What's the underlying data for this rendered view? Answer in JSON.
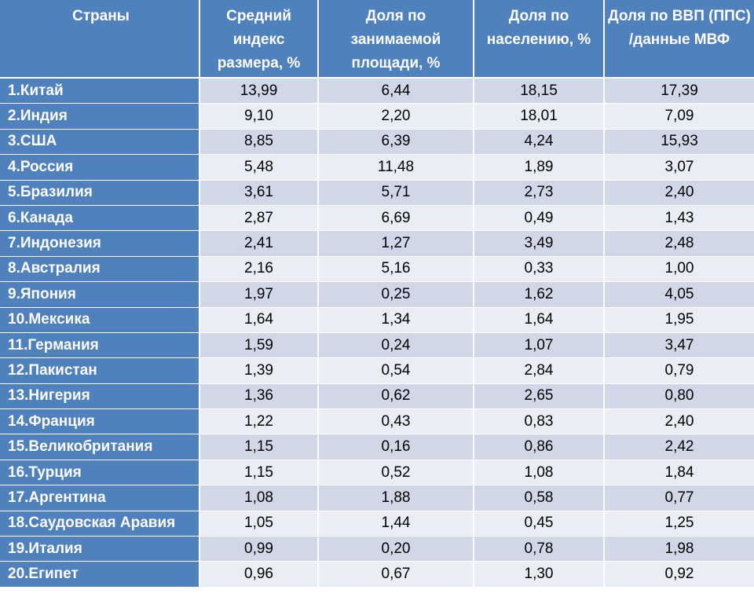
{
  "table": {
    "headers": [
      "Страны",
      "Средний индекс размера, %",
      "Доля по занимаемой площади, %",
      "Доля по населению, %",
      "Доля по ВВП (ППС) /данные МВФ"
    ],
    "rows": [
      [
        "1.Китай",
        "13,99",
        "6,44",
        "18,15",
        "17,39"
      ],
      [
        "2.Индия",
        "9,10",
        "2,20",
        "18,01",
        "7,09"
      ],
      [
        "3.США",
        "8,85",
        "6,39",
        "4,24",
        "15,93"
      ],
      [
        "4.Россия",
        "5,48",
        "11,48",
        "1,89",
        "3,07"
      ],
      [
        "5.Бразилия",
        "3,61",
        "5,71",
        "2,73",
        "2,40"
      ],
      [
        "6.Канада",
        "2,87",
        "6,69",
        "0,49",
        "1,43"
      ],
      [
        "7.Индонезия",
        "2,41",
        "1,27",
        "3,49",
        "2,48"
      ],
      [
        "8.Австралия",
        "2,16",
        "5,16",
        "0,33",
        "1,00"
      ],
      [
        "9.Япония",
        "1,97",
        "0,25",
        "1,62",
        "4,05"
      ],
      [
        "10.Мексика",
        "1,64",
        "1,34",
        "1,64",
        "1,95"
      ],
      [
        "11.Германия",
        "1,59",
        "0,24",
        "1,07",
        "3,47"
      ],
      [
        "12.Пакистан",
        "1,39",
        "0,54",
        "2,84",
        "0,79"
      ],
      [
        "13.Нигерия",
        "1,36",
        "0,62",
        "2,65",
        "0,80"
      ],
      [
        "14.Франция",
        "1,22",
        "0,43",
        "0,83",
        "2,40"
      ],
      [
        "15.Великобритания",
        "1,15",
        "0,16",
        "0,86",
        "2,42"
      ],
      [
        "16.Турция",
        "1,15",
        "0,52",
        "1,08",
        "1,84"
      ],
      [
        "17.Аргентина",
        "1,08",
        "1,88",
        "0,58",
        "0,77"
      ],
      [
        "18.Саудовская Аравия",
        "1,05",
        "1,44",
        "0,45",
        "1,25"
      ],
      [
        "19.Италия",
        "0,99",
        "0,20",
        "0,78",
        "1,98"
      ],
      [
        "20.Египет",
        "0,96",
        "0,67",
        "1,30",
        "0,92"
      ]
    ]
  },
  "colors": {
    "header_bg": "#4f81bd",
    "row_odd_bg": "#d0d8e8",
    "row_even_bg": "#e9edf4",
    "header_text": "#ffffff"
  }
}
